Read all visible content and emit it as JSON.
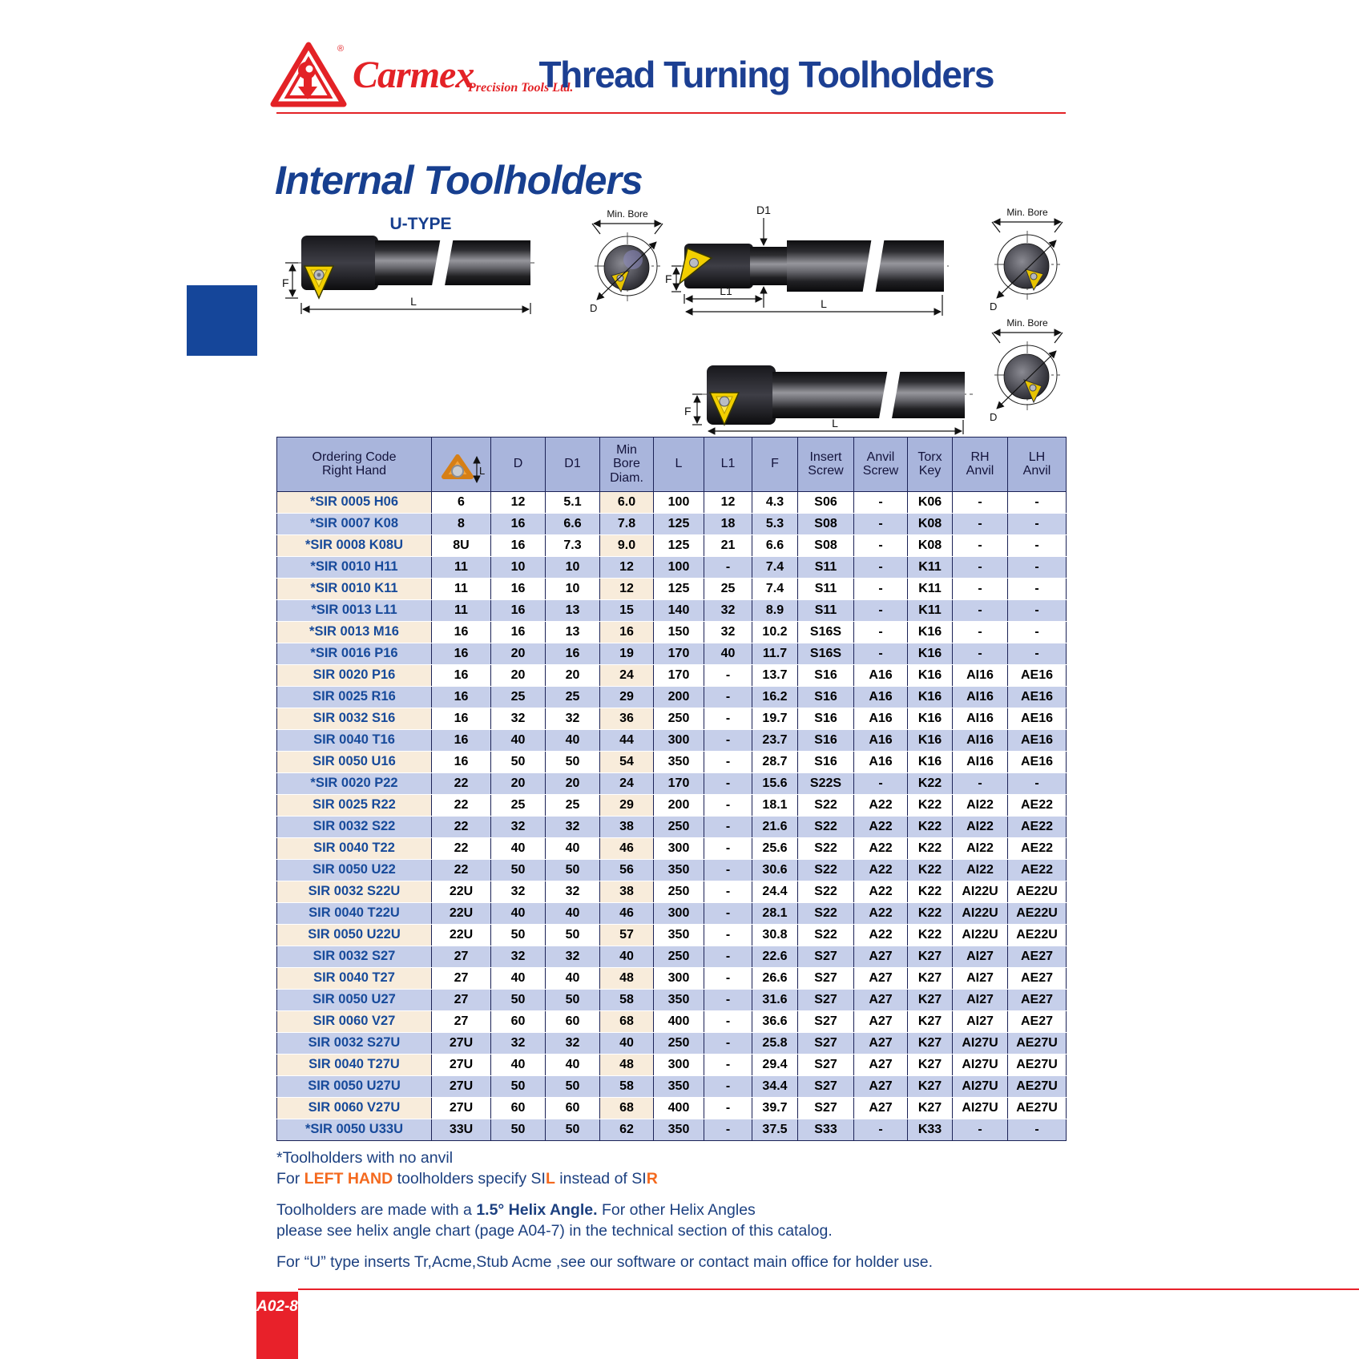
{
  "header": {
    "brand": "Carmex",
    "brand_reg": "®",
    "brand_tagline": "Precision Tools Ltd.",
    "page_title": "Thread Turning Toolholders"
  },
  "section": {
    "title": "Internal Toolholders",
    "u_type_label": "U-TYPE",
    "diagram_labels": {
      "min_bore": "Min. Bore",
      "d": "D",
      "d1": "D1",
      "l": "L",
      "l1": "L1",
      "f": "F"
    }
  },
  "table": {
    "icon_label": "L",
    "columns": [
      "Ordering Code\nRight Hand",
      "",
      "D",
      "D1",
      "Min\nBore\nDiam.",
      "L",
      "L1",
      "F",
      "Insert\nScrew",
      "Anvil\nScrew",
      "Torx\nKey",
      "RH\nAnvil",
      "LH\nAnvil"
    ],
    "rows": [
      {
        "code": "*SIR 0005 H06",
        "values": [
          "6",
          "12",
          "5.1",
          "6.0",
          "100",
          "12",
          "4.3",
          "S06",
          "-",
          "K06",
          "-",
          "-"
        ]
      },
      {
        "code": "*SIR 0007 K08",
        "values": [
          "8",
          "16",
          "6.6",
          "7.8",
          "125",
          "18",
          "5.3",
          "S08",
          "-",
          "K08",
          "-",
          "-"
        ]
      },
      {
        "code": "*SIR 0008 K08U",
        "values": [
          "8U",
          "16",
          "7.3",
          "9.0",
          "125",
          "21",
          "6.6",
          "S08",
          "-",
          "K08",
          "-",
          "-"
        ]
      },
      {
        "code": "*SIR 0010 H11",
        "values": [
          "11",
          "10",
          "10",
          "12",
          "100",
          "-",
          "7.4",
          "S11",
          "-",
          "K11",
          "-",
          "-"
        ]
      },
      {
        "code": "*SIR 0010 K11",
        "values": [
          "11",
          "16",
          "10",
          "12",
          "125",
          "25",
          "7.4",
          "S11",
          "-",
          "K11",
          "-",
          "-"
        ]
      },
      {
        "code": "*SIR 0013 L11",
        "values": [
          "11",
          "16",
          "13",
          "15",
          "140",
          "32",
          "8.9",
          "S11",
          "-",
          "K11",
          "-",
          "-"
        ]
      },
      {
        "code": "*SIR 0013 M16",
        "values": [
          "16",
          "16",
          "13",
          "16",
          "150",
          "32",
          "10.2",
          "S16S",
          "-",
          "K16",
          "-",
          "-"
        ]
      },
      {
        "code": "*SIR 0016 P16",
        "values": [
          "16",
          "20",
          "16",
          "19",
          "170",
          "40",
          "11.7",
          "S16S",
          "-",
          "K16",
          "-",
          "-"
        ]
      },
      {
        "code": "SIR 0020 P16",
        "values": [
          "16",
          "20",
          "20",
          "24",
          "170",
          "-",
          "13.7",
          "S16",
          "A16",
          "K16",
          "AI16",
          "AE16"
        ]
      },
      {
        "code": "SIR 0025 R16",
        "values": [
          "16",
          "25",
          "25",
          "29",
          "200",
          "-",
          "16.2",
          "S16",
          "A16",
          "K16",
          "AI16",
          "AE16"
        ]
      },
      {
        "code": "SIR 0032 S16",
        "values": [
          "16",
          "32",
          "32",
          "36",
          "250",
          "-",
          "19.7",
          "S16",
          "A16",
          "K16",
          "AI16",
          "AE16"
        ]
      },
      {
        "code": "SIR 0040 T16",
        "values": [
          "16",
          "40",
          "40",
          "44",
          "300",
          "-",
          "23.7",
          "S16",
          "A16",
          "K16",
          "AI16",
          "AE16"
        ]
      },
      {
        "code": "SIR 0050 U16",
        "values": [
          "16",
          "50",
          "50",
          "54",
          "350",
          "-",
          "28.7",
          "S16",
          "A16",
          "K16",
          "AI16",
          "AE16"
        ]
      },
      {
        "code": "*SIR 0020 P22",
        "values": [
          "22",
          "20",
          "20",
          "24",
          "170",
          "-",
          "15.6",
          "S22S",
          "-",
          "K22",
          "-",
          "-"
        ]
      },
      {
        "code": "SIR 0025 R22",
        "values": [
          "22",
          "25",
          "25",
          "29",
          "200",
          "-",
          "18.1",
          "S22",
          "A22",
          "K22",
          "AI22",
          "AE22"
        ]
      },
      {
        "code": "SIR 0032 S22",
        "values": [
          "22",
          "32",
          "32",
          "38",
          "250",
          "-",
          "21.6",
          "S22",
          "A22",
          "K22",
          "AI22",
          "AE22"
        ]
      },
      {
        "code": "SIR 0040 T22",
        "values": [
          "22",
          "40",
          "40",
          "46",
          "300",
          "-",
          "25.6",
          "S22",
          "A22",
          "K22",
          "AI22",
          "AE22"
        ]
      },
      {
        "code": "SIR 0050 U22",
        "values": [
          "22",
          "50",
          "50",
          "56",
          "350",
          "-",
          "30.6",
          "S22",
          "A22",
          "K22",
          "AI22",
          "AE22"
        ]
      },
      {
        "code": "SIR 0032 S22U",
        "values": [
          "22U",
          "32",
          "32",
          "38",
          "250",
          "-",
          "24.4",
          "S22",
          "A22",
          "K22",
          "AI22U",
          "AE22U"
        ]
      },
      {
        "code": "SIR 0040 T22U",
        "values": [
          "22U",
          "40",
          "40",
          "46",
          "300",
          "-",
          "28.1",
          "S22",
          "A22",
          "K22",
          "AI22U",
          "AE22U"
        ]
      },
      {
        "code": "SIR 0050 U22U",
        "values": [
          "22U",
          "50",
          "50",
          "57",
          "350",
          "-",
          "30.8",
          "S22",
          "A22",
          "K22",
          "AI22U",
          "AE22U"
        ]
      },
      {
        "code": "SIR 0032 S27",
        "values": [
          "27",
          "32",
          "32",
          "40",
          "250",
          "-",
          "22.6",
          "S27",
          "A27",
          "K27",
          "AI27",
          "AE27"
        ]
      },
      {
        "code": "SIR 0040 T27",
        "values": [
          "27",
          "40",
          "40",
          "48",
          "300",
          "-",
          "26.6",
          "S27",
          "A27",
          "K27",
          "AI27",
          "AE27"
        ]
      },
      {
        "code": "SIR 0050 U27",
        "values": [
          "27",
          "50",
          "50",
          "58",
          "350",
          "-",
          "31.6",
          "S27",
          "A27",
          "K27",
          "AI27",
          "AE27"
        ]
      },
      {
        "code": "SIR 0060 V27",
        "values": [
          "27",
          "60",
          "60",
          "68",
          "400",
          "-",
          "36.6",
          "S27",
          "A27",
          "K27",
          "AI27",
          "AE27"
        ]
      },
      {
        "code": "SIR 0032 S27U",
        "values": [
          "27U",
          "32",
          "32",
          "40",
          "250",
          "-",
          "25.8",
          "S27",
          "A27",
          "K27",
          "AI27U",
          "AE27U"
        ]
      },
      {
        "code": "SIR 0040 T27U",
        "values": [
          "27U",
          "40",
          "40",
          "48",
          "300",
          "-",
          "29.4",
          "S27",
          "A27",
          "K27",
          "AI27U",
          "AE27U"
        ]
      },
      {
        "code": "SIR 0050 U27U",
        "values": [
          "27U",
          "50",
          "50",
          "58",
          "350",
          "-",
          "34.4",
          "S27",
          "A27",
          "K27",
          "AI27U",
          "AE27U"
        ]
      },
      {
        "code": "SIR 0060 V27U",
        "values": [
          "27U",
          "60",
          "60",
          "68",
          "400",
          "-",
          "39.7",
          "S27",
          "A27",
          "K27",
          "AI27U",
          "AE27U"
        ]
      },
      {
        "code": "*SIR 0050 U33U",
        "values": [
          "33U",
          "50",
          "50",
          "62",
          "350",
          "-",
          "37.5",
          "S33",
          "-",
          "K33",
          "-",
          "-"
        ]
      }
    ]
  },
  "notes": {
    "paragraphs": [
      {
        "lines": [
          [
            {
              "t": "*Toolholders with no anvil"
            }
          ],
          [
            {
              "t": "For "
            },
            {
              "t": "LEFT HAND",
              "s": "ob"
            },
            {
              "t": " toolholders specify SI"
            },
            {
              "t": "L",
              "s": "ob"
            },
            {
              "t": " instead of SI"
            },
            {
              "t": "R",
              "s": "ob"
            }
          ]
        ]
      },
      {
        "lines": [
          [
            {
              "t": "Toolholders are made with a "
            },
            {
              "t": "1.5° Helix Angle.",
              "s": "b"
            },
            {
              "t": " For other Helix Angles"
            }
          ],
          [
            {
              "t": "please see helix angle chart (page A04-7) in the technical section of this catalog."
            }
          ]
        ]
      },
      {
        "lines": [
          [
            {
              "t": "For “U” type inserts  Tr,Acme,Stub Acme ,see our software or contact main office for holder use."
            }
          ]
        ]
      }
    ]
  },
  "footer": {
    "page_number": "A02-8"
  },
  "colors": {
    "brand_red": "#e32226",
    "title_blue": "#1c3f92",
    "table_header_bg": "#a9b5dc",
    "row_blue": "#c6cfea",
    "row_beige": "#f8ecdb",
    "code_blue": "#174a9a",
    "note_blue": "#1c4080",
    "note_orange": "#f4691e",
    "insert_yellow": "#f2cf00"
  }
}
